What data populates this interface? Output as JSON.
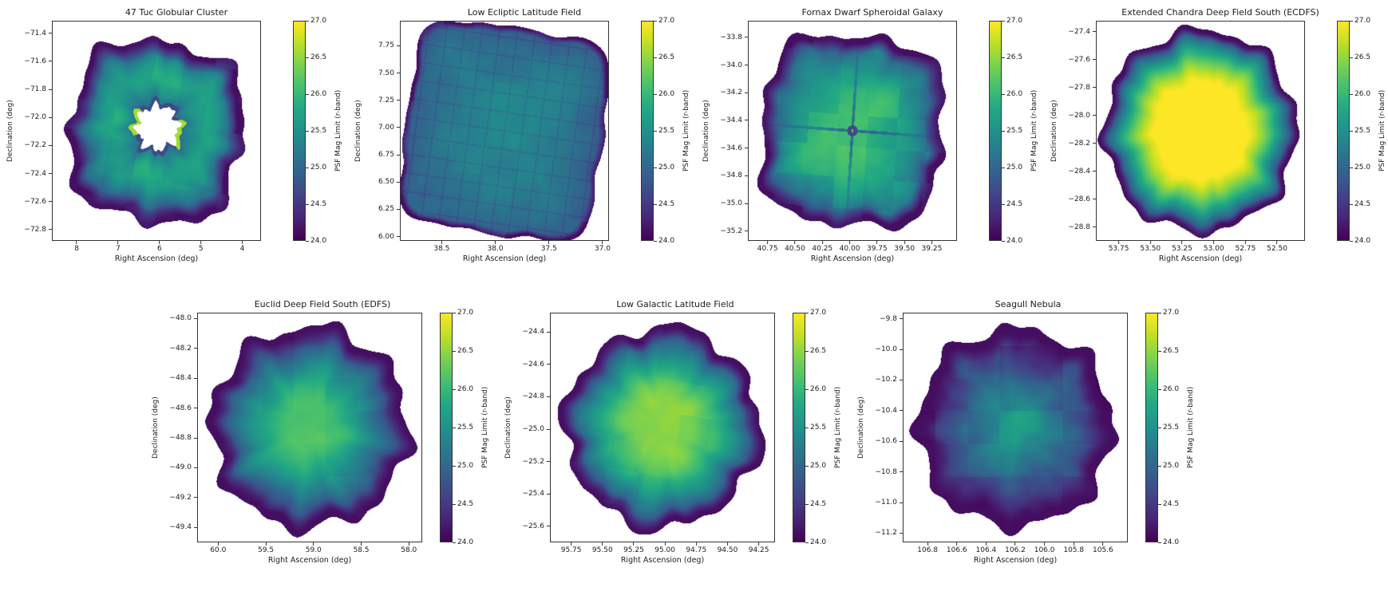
{
  "figure": {
    "background": "#ffffff",
    "colormap": "viridis",
    "colorbar": {
      "min": 24.0,
      "max": 27.0,
      "tick_labels": [
        "24.0",
        "24.5",
        "25.0",
        "25.5",
        "26.0",
        "26.5",
        "27.0"
      ],
      "tick_values": [
        24.0,
        24.5,
        25.0,
        25.5,
        26.0,
        26.5,
        27.0
      ],
      "gradient": [
        "#440154",
        "#482475",
        "#414487",
        "#355f8d",
        "#2a788e",
        "#21918c",
        "#22a884",
        "#44bf70",
        "#7ad151",
        "#bddf26",
        "#fde725"
      ]
    }
  },
  "chart_data": {
    "type": "heatmap",
    "value_label": "PSF Mag Limit (r-band)",
    "value_range": [
      24.0,
      27.0
    ],
    "panels": [
      {
        "title": "47 Tuc Globular Cluster",
        "row": 0,
        "xlabel": "Right Ascension (deg)",
        "ylabel": "Declination (deg)",
        "xlim": [
          8.6,
          3.55
        ],
        "ylim": [
          -71.31,
          -72.88
        ],
        "xtick_labels": [
          "8",
          "7",
          "6",
          "5",
          "4"
        ],
        "xtick_values": [
          8,
          7,
          6,
          5,
          4
        ],
        "ytick_labels": [
          "−71.4",
          "−71.6",
          "−71.8",
          "−72.0",
          "−72.2",
          "−72.4",
          "−72.6",
          "−72.8"
        ],
        "ytick_values": [
          -71.4,
          -71.6,
          -71.8,
          -72.0,
          -72.2,
          -72.4,
          -72.6,
          -72.8
        ],
        "description": "Ring-shaped depth map of overlapping rotated pointings; saturated white hole at the crowded cluster core with thin bright rim; green ring ~25.7 mag fading to dark 24.1 edges",
        "map": {
          "style": "donut",
          "seed": 101,
          "radius": 0.82,
          "sq": 3.0,
          "rot": 12,
          "jag": 0.1,
          "cx": 0,
          "cy": 0.01,
          "hole": 0.2,
          "holeCx": 0.01,
          "holeCy": -0.04,
          "peak": 25.75,
          "edge": 24.3,
          "rim": 0.8,
          "noiseAmp": 0.22,
          "blockAmp": 0.22,
          "falloff": 2,
          "plateau": 0
        }
      },
      {
        "title": "Low Ecliptic Latitude Field",
        "row": 0,
        "xlabel": "Right Ascension (deg)",
        "ylabel": "Declination (deg)",
        "xlim": [
          38.89,
          36.94
        ],
        "ylim": [
          7.98,
          5.96
        ],
        "xtick_labels": [
          "38.5",
          "38.0",
          "37.5",
          "37.0"
        ],
        "xtick_values": [
          38.5,
          38.0,
          37.5,
          37.0
        ],
        "ytick_labels": [
          "7.75",
          "7.50",
          "7.25",
          "7.00",
          "6.75",
          "6.50",
          "6.25",
          "6.00"
        ],
        "ytick_values": [
          7.75,
          7.5,
          7.25,
          7.0,
          6.75,
          6.5,
          6.25,
          6.0
        ],
        "description": "Single large tilted square footprint; fairly uniform teal ~25.2-25.4 mag with faint darker exposure grid lines and a thin dark 24.2 border",
        "map": {
          "style": "flat",
          "seed": 202,
          "radius": 0.95,
          "sq": 5.5,
          "rot": 8,
          "jag": 0.035,
          "peak": 25.35,
          "edge": 24.85,
          "plateau": 0,
          "falloff": 2.6,
          "rim": 0.93,
          "noiseAmp": 0.14,
          "blockAmp": 0.1,
          "grid": 0.17
        }
      },
      {
        "title": "Fornax Dwarf Spheroidal Galaxy",
        "row": 0,
        "xlabel": "Right Ascension (deg)",
        "ylabel": "Declination (deg)",
        "xlim": [
          40.93,
          39.02
        ],
        "ylim": [
          -33.68,
          -35.27
        ],
        "xtick_labels": [
          "40.75",
          "40.50",
          "40.25",
          "40.00",
          "39.75",
          "39.50",
          "39.25"
        ],
        "xtick_values": [
          40.75,
          40.5,
          40.25,
          40.0,
          39.75,
          39.5,
          39.25
        ],
        "ytick_labels": [
          "−33.8",
          "−34.0",
          "−34.2",
          "−34.4",
          "−34.6",
          "−34.8",
          "−35.0",
          "−35.2"
        ],
        "ytick_values": [
          -33.8,
          -34.0,
          -34.2,
          -34.4,
          -34.6,
          -34.8,
          -35.0,
          -35.2
        ],
        "description": "Square-ish green footprint ~26.0 mag with patchy brighter blocks, dark cross-shaped seam through the center, dark dip with a tiny bright speck at the galaxy center, dark 24.3 edges",
        "map": {
          "style": "cross",
          "seed": 303,
          "radius": 0.86,
          "sq": 3.6,
          "rot": 4,
          "jag": 0.08,
          "peak": 26.0,
          "edge": 24.45,
          "plateau": 0.05,
          "falloff": 2.8,
          "rim": 0.82,
          "noiseAmp": 0.22,
          "blockAmp": 0.3
        }
      },
      {
        "title": "Extended Chandra Deep Field South (ECDFS)",
        "row": 0,
        "xlabel": "Right Ascension (deg)",
        "ylabel": "Declination (deg)",
        "xlim": [
          53.93,
          52.28
        ],
        "ylim": [
          -27.32,
          -28.9
        ],
        "xtick_labels": [
          "53.75",
          "53.50",
          "53.25",
          "53.00",
          "52.75",
          "52.50"
        ],
        "xtick_values": [
          53.75,
          53.5,
          53.25,
          53.0,
          52.75,
          52.5
        ],
        "ytick_labels": [
          "−27.4",
          "−27.6",
          "−27.8",
          "−28.0",
          "−28.2",
          "−28.4",
          "−28.6",
          "−28.8"
        ],
        "ytick_values": [
          -27.4,
          -27.6,
          -27.8,
          -28.0,
          -28.2,
          -28.4,
          -28.6,
          -28.8
        ],
        "description": "Round deep-drilling blob with broad saturated yellow ~27.0 mag core, green annulus, blue then dark-purple jagged 24.1 rim",
        "map": {
          "style": "peak",
          "seed": 404,
          "radius": 0.92,
          "sq": 2.15,
          "rot": 0,
          "jag": 0.085,
          "peak": 27.15,
          "edge": 24.15,
          "plateau": 0.38,
          "falloff": 1.7,
          "rim": 0.9,
          "noiseAmp": 0.1,
          "blockAmp": 0.08
        }
      },
      {
        "title": "Euclid Deep Field South (EDFS)",
        "row": 1,
        "xlabel": "Right Ascension (deg)",
        "ylabel": "Declination (deg)",
        "xlim": [
          60.22,
          57.86
        ],
        "ylim": [
          -47.96,
          -49.5
        ],
        "xtick_labels": [
          "60.0",
          "59.5",
          "59.0",
          "58.5",
          "58.0"
        ],
        "xtick_values": [
          60.0,
          59.5,
          59.0,
          58.5,
          58.0
        ],
        "ytick_labels": [
          "−48.0",
          "−48.2",
          "−48.4",
          "−48.6",
          "−48.8",
          "−49.0",
          "−49.2",
          "−49.4"
        ],
        "ytick_values": [
          -48.0,
          -48.2,
          -48.4,
          -48.6,
          -48.8,
          -49.0,
          -49.2,
          -49.4
        ],
        "description": "Round blob with green ~26.1 mag core, blue transition ring and very jagged dark-purple 24.1 star-like edge of offset pointings",
        "map": {
          "style": "peak",
          "seed": 505,
          "radius": 0.88,
          "sq": 2.1,
          "rot": 0,
          "jag": 0.115,
          "peak": 26.1,
          "edge": 24.15,
          "plateau": 0.22,
          "falloff": 1.45,
          "rim": 0.8,
          "noiseAmp": 0.16,
          "blockAmp": 0.16
        }
      },
      {
        "title": "Low Galactic Latitude Field",
        "row": 1,
        "xlabel": "Right Ascension (deg)",
        "ylabel": "Declination (deg)",
        "xlim": [
          95.92,
          94.12
        ],
        "ylim": [
          -24.28,
          -25.7
        ],
        "xtick_labels": [
          "95.75",
          "95.50",
          "95.25",
          "95.00",
          "94.75",
          "94.50",
          "94.25"
        ],
        "xtick_values": [
          95.75,
          95.5,
          95.25,
          95.0,
          94.75,
          94.5,
          94.25
        ],
        "ytick_labels": [
          "−24.4",
          "−24.6",
          "−24.8",
          "−25.0",
          "−25.2",
          "−25.4",
          "−25.6"
        ],
        "ytick_values": [
          -24.4,
          -24.6,
          -24.8,
          -25.0,
          -25.2,
          -25.4,
          -25.6
        ],
        "description": "Diamond-ish rotated footprint with yellow-green ~26.4 mag core fading through teal to dark jagged 24.2 edges",
        "map": {
          "style": "peak",
          "seed": 606,
          "radius": 0.9,
          "sq": 1.8,
          "rot": 10,
          "jag": 0.09,
          "peak": 26.45,
          "edge": 24.2,
          "plateau": 0.26,
          "falloff": 1.6,
          "rim": 0.84,
          "noiseAmp": 0.16,
          "blockAmp": 0.14
        }
      },
      {
        "title": "Seagull Nebula",
        "row": 1,
        "xlabel": "Right Ascension (deg)",
        "ylabel": "Declination (deg)",
        "xlim": [
          106.97,
          105.43
        ],
        "ylim": [
          -9.76,
          -11.26
        ],
        "xtick_labels": [
          "106.8",
          "106.6",
          "106.4",
          "106.2",
          "106.0",
          "105.8",
          "105.6"
        ],
        "xtick_values": [
          106.8,
          106.6,
          106.4,
          106.2,
          106.0,
          105.8,
          105.6
        ],
        "ytick_labels": [
          "−9.8",
          "−10.0",
          "−10.2",
          "−10.4",
          "−10.6",
          "−10.8",
          "−11.0",
          "−11.2"
        ],
        "ytick_values": [
          -9.8,
          -10.0,
          -10.2,
          -10.4,
          -10.6,
          -10.8,
          -11.0,
          -11.2
        ],
        "description": "Mottled teal ~25.5 mag blob with heavy patchwork of overlapping exposures and thick dark-purple 24.1 jagged border squares",
        "map": {
          "style": "peak",
          "seed": 707,
          "radius": 0.86,
          "sq": 2.25,
          "rot": 0,
          "jag": 0.11,
          "peak": 25.6,
          "edge": 24.1,
          "plateau": 0.1,
          "falloff": 1.15,
          "rim": 0.76,
          "noiseAmp": 0.3,
          "blockAmp": 0.3
        }
      }
    ]
  }
}
